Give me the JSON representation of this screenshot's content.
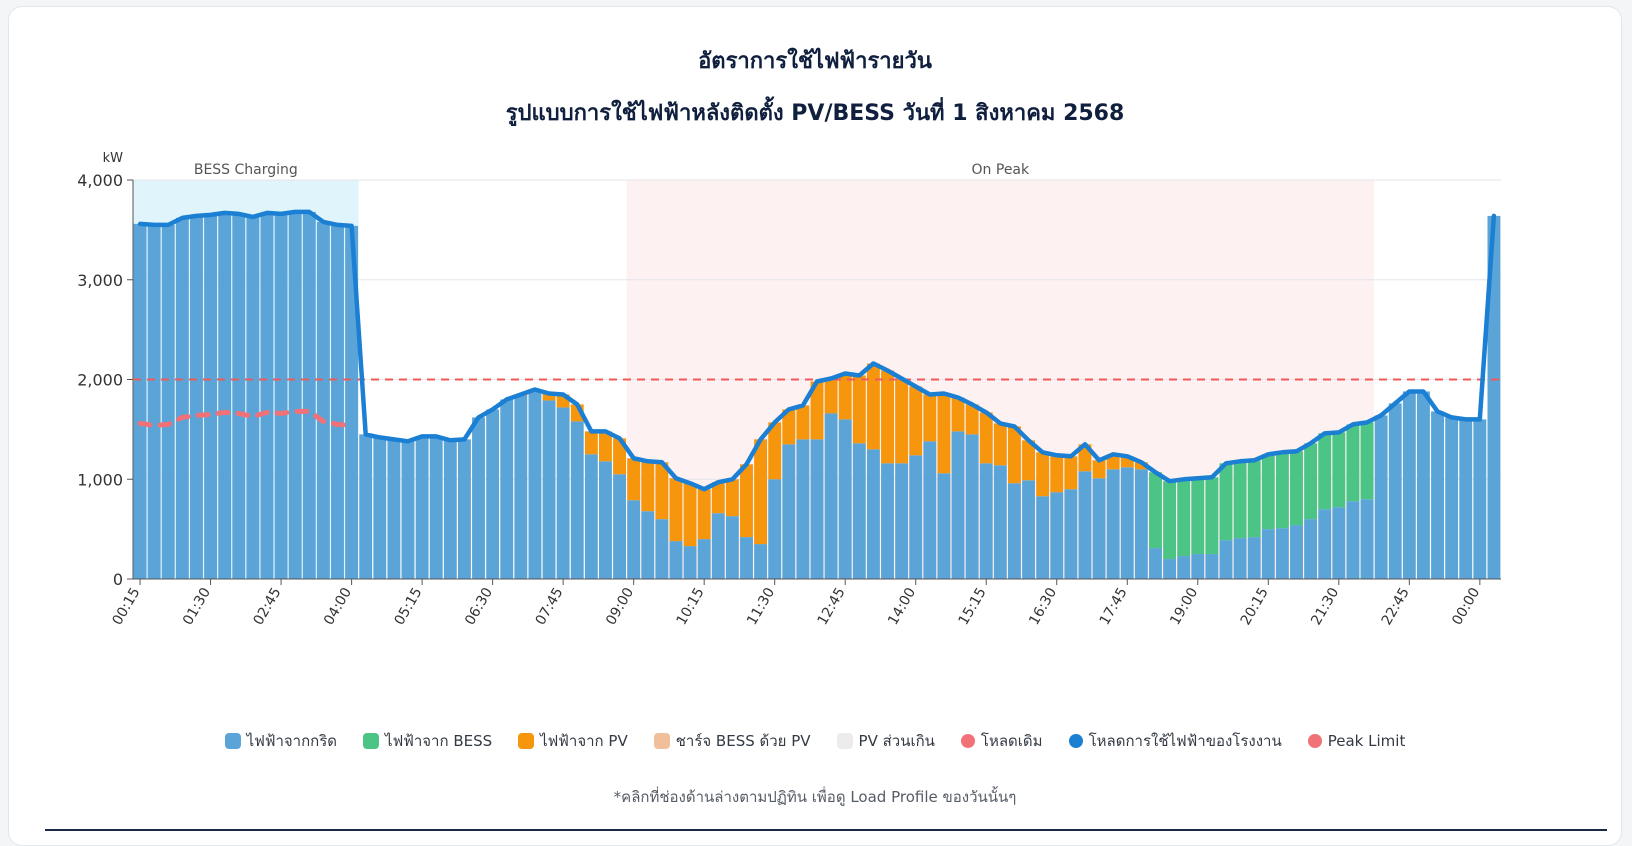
{
  "chart_data": {
    "type": "bar",
    "title": "อัตราการใช้ไฟฟ้ารายวัน",
    "subtitle": "รูปแบบการใช้ไฟฟ้าหลังติดตั้ง PV/BESS วันที่ 1 สิงหาคม 2568",
    "ylabel": "kW",
    "ylim": [
      0,
      4000
    ],
    "yticks": [
      "0",
      "1,000",
      "2,000",
      "3,000",
      "4,000"
    ],
    "x_tick_labels": [
      "00:15",
      "01:30",
      "02:45",
      "04:00",
      "05:15",
      "06:30",
      "07:45",
      "09:00",
      "10:15",
      "11:30",
      "12:45",
      "14:00",
      "15:15",
      "16:30",
      "17:45",
      "19:00",
      "20:15",
      "21:30",
      "22:45",
      "00:00"
    ],
    "interval_minutes": 15,
    "stacked": true,
    "series": [
      {
        "name": "ไฟฟ้าจากกริด",
        "color": "#5ba4d8",
        "values": [
          3560,
          3550,
          3550,
          3620,
          3640,
          3650,
          3670,
          3660,
          3630,
          3670,
          3660,
          3680,
          3680,
          3580,
          3550,
          3540,
          1450,
          1420,
          1400,
          1380,
          1430,
          1430,
          1390,
          1400,
          1620,
          1700,
          1800,
          1840,
          1880,
          1790,
          1720,
          1580,
          1250,
          1180,
          1050,
          790,
          680,
          600,
          380,
          330,
          400,
          660,
          630,
          420,
          350,
          1000,
          1350,
          1400,
          1400,
          1660,
          1600,
          1360,
          1300,
          1160,
          1160,
          1240,
          1380,
          1060,
          1480,
          1450,
          1160,
          1140,
          960,
          990,
          830,
          870,
          900,
          1080,
          1010,
          1100,
          1120,
          1100,
          310,
          200,
          230,
          250,
          250,
          390,
          410,
          420,
          500,
          510,
          540,
          600,
          700,
          720,
          780,
          800,
          1640,
          1760,
          1880,
          1880,
          1680,
          1620,
          1600,
          1600,
          3640
        ]
      },
      {
        "name": "ไฟฟ้าจาก BESS",
        "color": "#4cc485",
        "values": [
          0,
          0,
          0,
          0,
          0,
          0,
          0,
          0,
          0,
          0,
          0,
          0,
          0,
          0,
          0,
          0,
          0,
          0,
          0,
          0,
          0,
          0,
          0,
          0,
          0,
          0,
          0,
          0,
          0,
          0,
          0,
          0,
          0,
          0,
          0,
          0,
          0,
          0,
          0,
          0,
          0,
          0,
          0,
          0,
          0,
          0,
          0,
          0,
          0,
          0,
          0,
          0,
          0,
          0,
          0,
          0,
          0,
          0,
          0,
          0,
          0,
          0,
          0,
          0,
          0,
          0,
          0,
          0,
          0,
          0,
          0,
          0,
          760,
          780,
          770,
          760,
          770,
          770,
          770,
          770,
          750,
          760,
          740,
          760,
          760,
          750,
          770,
          770,
          0,
          0,
          0,
          0,
          0,
          0,
          0,
          0,
          0
        ]
      },
      {
        "name": "ไฟฟ้าจาก PV",
        "color": "#f5960d",
        "values": [
          0,
          0,
          0,
          0,
          0,
          0,
          0,
          0,
          0,
          0,
          0,
          0,
          0,
          0,
          0,
          0,
          0,
          0,
          0,
          0,
          0,
          0,
          0,
          0,
          0,
          0,
          0,
          10,
          20,
          70,
          130,
          170,
          230,
          300,
          360,
          420,
          500,
          570,
          630,
          630,
          500,
          310,
          370,
          730,
          1050,
          570,
          350,
          340,
          580,
          350,
          460,
          680,
          860,
          930,
          850,
          690,
          470,
          800,
          340,
          300,
          510,
          420,
          570,
          400,
          440,
          370,
          330,
          270,
          180,
          150,
          110,
          70,
          0,
          0,
          0,
          0,
          0,
          0,
          0,
          0,
          0,
          0,
          0,
          0,
          0,
          0,
          0,
          0,
          0,
          0,
          0,
          0,
          0,
          0,
          0,
          0,
          0
        ]
      },
      {
        "name": "ชาร์จ BESS ด้วย PV",
        "color": "#f2bf9b",
        "values": []
      },
      {
        "name": "PV ส่วนเกิน",
        "color": "#ececec",
        "values": []
      }
    ],
    "lines": [
      {
        "name": "โหลดเดิม",
        "color": "#f07177",
        "style": "dash-thick",
        "values": [
          1560,
          1540,
          1550,
          1620,
          1640,
          1650,
          1670,
          1660,
          1630,
          1670,
          1660,
          1680,
          1680,
          1580,
          1550,
          1540
        ]
      },
      {
        "name": "โหลดการใช้ไฟฟ้าของโรงงาน",
        "color": "#1b7fd4",
        "style": "solid-thick",
        "values": [
          3560,
          3550,
          3550,
          3620,
          3640,
          3650,
          3670,
          3660,
          3630,
          3670,
          3660,
          3680,
          3680,
          3580,
          3550,
          3540,
          1450,
          1420,
          1400,
          1380,
          1430,
          1430,
          1390,
          1400,
          1620,
          1700,
          1800,
          1850,
          1900,
          1860,
          1850,
          1750,
          1480,
          1480,
          1410,
          1210,
          1180,
          1170,
          1010,
          960,
          900,
          970,
          1000,
          1150,
          1400,
          1570,
          1700,
          1740,
          1980,
          2010,
          2060,
          2040,
          2160,
          2090,
          2010,
          1930,
          1850,
          1860,
          1820,
          1750,
          1670,
          1560,
          1530,
          1390,
          1270,
          1240,
          1230,
          1350,
          1190,
          1250,
          1230,
          1170,
          1070,
          980,
          1000,
          1010,
          1020,
          1160,
          1180,
          1190,
          1250,
          1270,
          1280,
          1360,
          1460,
          1470,
          1550,
          1570,
          1640,
          1760,
          1880,
          1880,
          1680,
          1620,
          1600,
          1600,
          3640
        ]
      },
      {
        "name": "Peak Limit",
        "color": "#f05a5a",
        "style": "dash",
        "value": 2000
      }
    ],
    "bands": [
      {
        "label": "BESS Charging",
        "from": "00:15",
        "to": "04:00",
        "color": "#dff4fb"
      },
      {
        "label": "On Peak",
        "from": "09:00",
        "to": "22:00",
        "color": "#fdf1f1"
      }
    ],
    "grid": true,
    "legend": "bottom"
  },
  "legend": [
    {
      "label": "ไฟฟ้าจากกริด",
      "color": "#5ba4d8",
      "kind": "box"
    },
    {
      "label": "ไฟฟ้าจาก BESS",
      "color": "#4cc485",
      "kind": "box"
    },
    {
      "label": "ไฟฟ้าจาก PV",
      "color": "#f5960d",
      "kind": "box"
    },
    {
      "label": "ชาร์จ BESS ด้วย PV",
      "color": "#f2bf9b",
      "kind": "box"
    },
    {
      "label": "PV ส่วนเกิน",
      "color": "#ececec",
      "kind": "box"
    },
    {
      "label": "โหลดเดิม",
      "color": "#f07177",
      "kind": "dot"
    },
    {
      "label": "โหลดการใช้ไฟฟ้าของโรงงาน",
      "color": "#1b7fd4",
      "kind": "dot"
    },
    {
      "label": "Peak Limit",
      "color": "#f07177",
      "kind": "dot"
    }
  ],
  "note": "*คลิกที่ช่องด้านล่างตามปฏิทิน เพื่อดู Load Profile ของวันนั้นๆ"
}
